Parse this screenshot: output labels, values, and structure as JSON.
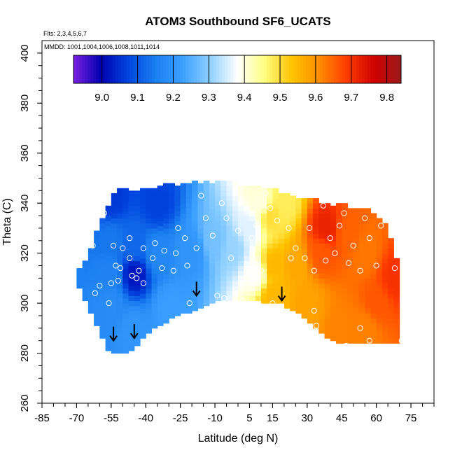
{
  "chart_data": {
    "type": "heatmap",
    "title": "ATOM3 Southbound SF6_UCATS",
    "flights_note": "Flts: 2,3,4,5,6,7",
    "mmdd_note": "MMDD: 1001,1004,1006,1008,1011,1014",
    "xlabel": "Latitude (deg N)",
    "ylabel": "Theta (C)",
    "xlim": [
      -85,
      85
    ],
    "ylim": [
      260,
      405
    ],
    "x_ticks": [
      "-85",
      "-70",
      "-55",
      "-40",
      "-25",
      "-10",
      "5",
      "15",
      "30",
      "45",
      "60",
      "75"
    ],
    "x_tick_values": [
      -85,
      -70,
      -55,
      -40,
      -25,
      -10,
      5,
      15,
      30,
      45,
      60,
      75
    ],
    "y_ticks": [
      "260",
      "280",
      "300",
      "320",
      "340",
      "360",
      "380",
      "400"
    ],
    "y_tick_values": [
      260,
      280,
      300,
      320,
      340,
      360,
      380,
      400
    ],
    "colorbar": {
      "min": 8.92,
      "max": 9.84,
      "ticks": [
        "9.0",
        "9.1",
        "9.2",
        "9.3",
        "9.4",
        "9.5",
        "9.6",
        "9.7",
        "9.8"
      ],
      "tick_values": [
        9.0,
        9.1,
        9.2,
        9.3,
        9.4,
        9.5,
        9.6,
        9.7,
        9.8
      ],
      "colors": [
        "#7b1fe0",
        "#0000b0",
        "#0044dd",
        "#1a7ff0",
        "#3ca0ff",
        "#8ed0ff",
        "#ffffff",
        "#ffff80",
        "#ffc400",
        "#ff8c00",
        "#ff3c00",
        "#d00000",
        "#9a1a1a"
      ]
    },
    "domain_bottom": [
      [
        -70,
        309
      ],
      [
        -65,
        299
      ],
      [
        -60,
        289
      ],
      [
        -56,
        281
      ],
      [
        -50,
        280
      ],
      [
        -45,
        282
      ],
      [
        -40,
        288
      ],
      [
        -33,
        292
      ],
      [
        -25,
        296
      ],
      [
        -17,
        298
      ],
      [
        -10,
        301
      ],
      [
        0,
        301
      ],
      [
        10,
        301
      ],
      [
        19,
        300
      ],
      [
        27,
        296
      ],
      [
        33,
        291
      ],
      [
        40,
        286
      ],
      [
        45,
        284
      ],
      [
        55,
        284
      ],
      [
        70,
        284
      ]
    ],
    "domain_top": [
      [
        -70,
        311
      ],
      [
        -64,
        322
      ],
      [
        -58,
        336
      ],
      [
        -53,
        345
      ],
      [
        -34,
        347
      ],
      [
        -20,
        348
      ],
      [
        -10,
        348
      ],
      [
        0,
        348
      ],
      [
        10,
        347
      ],
      [
        20,
        344
      ],
      [
        30,
        342
      ],
      [
        40,
        340
      ],
      [
        55,
        338
      ],
      [
        60,
        335
      ],
      [
        65,
        330
      ],
      [
        70,
        315
      ]
    ],
    "field_points": [
      [
        -55,
        300,
        9.18
      ],
      [
        -55,
        312,
        9.16
      ],
      [
        -55,
        325,
        9.14
      ],
      [
        -55,
        342,
        9.06
      ],
      [
        -45,
        312,
        9.02
      ],
      [
        -45,
        322,
        9.12
      ],
      [
        -45,
        290,
        9.2
      ],
      [
        -35,
        340,
        9.07
      ],
      [
        -35,
        320,
        9.17
      ],
      [
        -30,
        298,
        9.22
      ],
      [
        -20,
        320,
        9.2
      ],
      [
        -10,
        325,
        9.28
      ],
      [
        -2,
        322,
        9.31
      ],
      [
        5,
        330,
        9.36
      ],
      [
        8,
        312,
        9.38
      ],
      [
        10,
        340,
        9.4
      ],
      [
        14,
        335,
        9.5
      ],
      [
        15,
        315,
        9.55
      ],
      [
        15,
        303,
        9.55
      ],
      [
        25,
        315,
        9.57
      ],
      [
        30,
        300,
        9.58
      ],
      [
        38,
        330,
        9.72
      ],
      [
        36,
        320,
        9.66
      ],
      [
        48,
        328,
        9.65
      ],
      [
        55,
        320,
        9.63
      ],
      [
        60,
        300,
        9.66
      ],
      [
        68,
        310,
        9.7
      ],
      [
        45,
        290,
        9.62
      ],
      [
        55,
        290,
        9.62
      ],
      [
        20,
        340,
        9.48
      ]
    ],
    "observations": [
      [
        -54,
        323
      ],
      [
        -53,
        315
      ],
      [
        -50,
        322
      ],
      [
        -51,
        314
      ],
      [
        -52,
        309
      ],
      [
        -55,
        308
      ],
      [
        -56,
        300
      ],
      [
        -58,
        336
      ],
      [
        -60,
        307
      ],
      [
        -47,
        326
      ],
      [
        -47,
        318
      ],
      [
        -46,
        311
      ],
      [
        -44,
        310
      ],
      [
        -43,
        313
      ],
      [
        -41,
        322
      ],
      [
        -41,
        308
      ],
      [
        -37,
        318
      ],
      [
        -36,
        324
      ],
      [
        -33,
        314
      ],
      [
        -32,
        321
      ],
      [
        -28,
        313
      ],
      [
        -27,
        320
      ],
      [
        -26,
        330
      ],
      [
        -23,
        326
      ],
      [
        -22,
        315
      ],
      [
        -21,
        300
      ],
      [
        -18,
        322
      ],
      [
        -16,
        343
      ],
      [
        -14,
        334
      ],
      [
        -13,
        296
      ],
      [
        -11,
        327
      ],
      [
        -9,
        303
      ],
      [
        -7,
        340
      ],
      [
        -6,
        302
      ],
      [
        -5,
        334
      ],
      [
        -3,
        318
      ],
      [
        0,
        329
      ],
      [
        2,
        301
      ],
      [
        4,
        337
      ],
      [
        5,
        312
      ],
      [
        6,
        326
      ],
      [
        8,
        331
      ],
      [
        10,
        313
      ],
      [
        12,
        344
      ],
      [
        14,
        338
      ],
      [
        15,
        300
      ],
      [
        17,
        333
      ],
      [
        20,
        347
      ],
      [
        22,
        330
      ],
      [
        23,
        318
      ],
      [
        25,
        322
      ],
      [
        29,
        318
      ],
      [
        31,
        330
      ],
      [
        33,
        313
      ],
      [
        37,
        339
      ],
      [
        38,
        317
      ],
      [
        40,
        326
      ],
      [
        42,
        320
      ],
      [
        44,
        331
      ],
      [
        46,
        336
      ],
      [
        48,
        316
      ],
      [
        50,
        323
      ],
      [
        53,
        313
      ],
      [
        55,
        334
      ],
      [
        57,
        326
      ],
      [
        60,
        315
      ],
      [
        62,
        331
      ],
      [
        64,
        337
      ],
      [
        68,
        314
      ],
      [
        -63,
        323
      ],
      [
        -62,
        304
      ],
      [
        33,
        297
      ],
      [
        34,
        291
      ],
      [
        47,
        283
      ],
      [
        53,
        290
      ],
      [
        57,
        285
      ],
      [
        71,
        285
      ]
    ],
    "arrows": [
      [
        -54,
        285
      ],
      [
        -45,
        286
      ],
      [
        -18,
        303
      ],
      [
        19,
        301
      ]
    ]
  }
}
